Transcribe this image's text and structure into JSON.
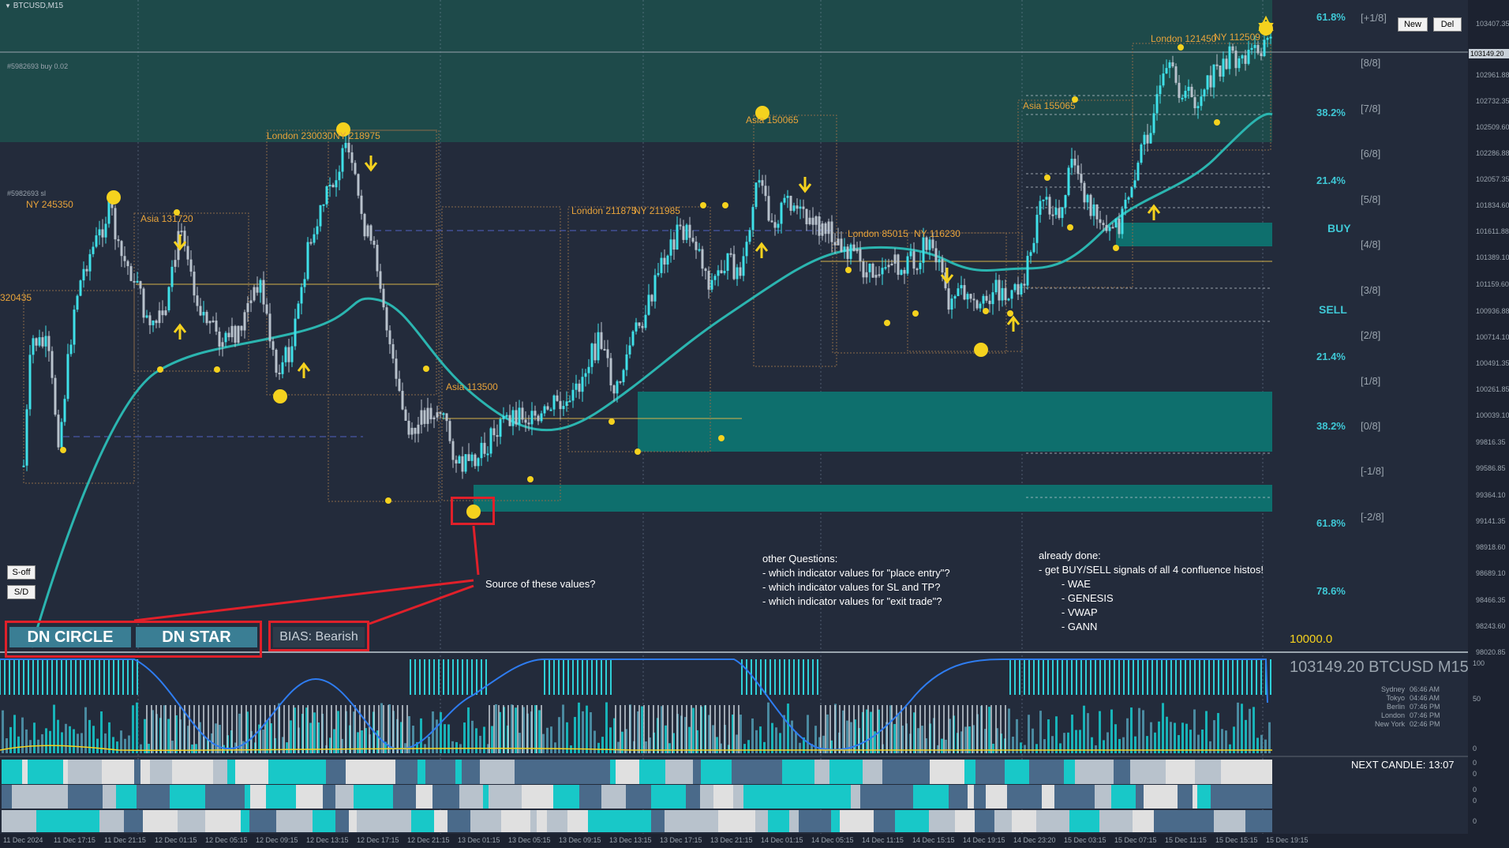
{
  "window": {
    "title": "BTCUSD,M15",
    "collapse_icon": "triangle-down-icon"
  },
  "chart": {
    "symbol_line": "103149.20 BTCUSD M15",
    "order_label_top": "#5982693 buy 0.02",
    "order_label_sl": "#5982693 sl",
    "current_price_box": "103149.20",
    "balance_value": "10000.0",
    "next_candle": "NEXT CANDLE: 13:07",
    "price_ticks": [
      "103407.35",
      "103149.20",
      "102961.88",
      "102732.35",
      "102509.60",
      "102286.88",
      "102057.35",
      "101834.60",
      "101611.88",
      "101389.10",
      "101159.60",
      "100936.88",
      "100714.10",
      "100491.35",
      "100261.85",
      "100039.10",
      "99816.35",
      "99586.85",
      "99364.10",
      "99141.35",
      "98918.60",
      "98689.10",
      "98466.35",
      "98243.60",
      "98020.85"
    ],
    "time_ticks": [
      "11 Dec 2024",
      "11 Dec 17:15",
      "11 Dec 21:15",
      "12 Dec 01:15",
      "12 Dec 05:15",
      "12 Dec 09:15",
      "12 Dec 13:15",
      "12 Dec 17:15",
      "12 Dec 21:15",
      "13 Dec 01:15",
      "13 Dec 05:15",
      "13 Dec 09:15",
      "13 Dec 13:15",
      "13 Dec 17:15",
      "13 Dec 21:15",
      "14 Dec 01:15",
      "14 Dec 05:15",
      "14 Dec 11:15",
      "14 Dec 15:15",
      "14 Dec 19:15",
      "14 Dec 23:20",
      "15 Dec 03:15",
      "15 Dec 07:15",
      "15 Dec 11:15",
      "15 Dec 15:15",
      "15 Dec 19:15"
    ],
    "sub_ticks": [
      "100",
      "50",
      "0",
      "0",
      "0",
      "0",
      "0",
      "0"
    ],
    "fib_labels": [
      {
        "text": "61.8%",
        "color": "#3fc8d6"
      },
      {
        "text": "38.2%",
        "color": "#3fc8d6"
      },
      {
        "text": "21.4%",
        "color": "#3fc8d6"
      },
      {
        "text": "21.4%",
        "color": "#3fc8d6"
      },
      {
        "text": "38.2%",
        "color": "#3fc8d6"
      },
      {
        "text": "61.8%",
        "color": "#3fc8d6"
      },
      {
        "text": "78.6%",
        "color": "#3fc8d6"
      }
    ],
    "gann_labels": [
      "[+1/8]",
      "[8/8]",
      "[7/8]",
      "[6/8]",
      "[5/8]",
      "[4/8]",
      "[3/8]",
      "[2/8]",
      "[1/8]",
      "[0/8]",
      "[-1/8]",
      "[-2/8]"
    ],
    "buy_label": "BUY",
    "sell_label": "SELL",
    "session_labels": [
      "NY 245350",
      "Asia 131720",
      "London 230030",
      "NY 218975",
      "320435",
      "Asia 113500",
      "London 211875",
      "NY 211985",
      "Asia 150065",
      "London 85015",
      "NY 116230",
      "Asia 155065",
      "London 121450",
      "NY 112509"
    ],
    "clocks": [
      {
        "city": "Sydney",
        "time": "06:46 AM"
      },
      {
        "city": "Tokyo",
        "time": "04:46 AM"
      },
      {
        "city": "Berlin",
        "time": "07:46 PM"
      },
      {
        "city": "London",
        "time": "07:46 PM"
      },
      {
        "city": "New York",
        "time": "02:46 PM"
      }
    ]
  },
  "buttons": {
    "new": "New",
    "del": "Del",
    "s_off": "S-off",
    "s_d": "S/D"
  },
  "panels": {
    "dn_circle": "DN CIRCLE",
    "dn_star": "DN STAR",
    "bias": "BIAS: Bearish"
  },
  "annotations": {
    "source_question": "Source of these values?",
    "other_questions": "other Questions:\n- which indicator values for \"place entry\"?\n- which indicator values for SL and TP?\n- which indicator values for \"exit trade\"?",
    "already_done": "already done:\n- get BUY/SELL signals of all 4 confluence histos!\n        - WAE\n        - GENESIS\n        - VWAP\n        - GANN"
  },
  "colors": {
    "background": "#232b3b",
    "bull": "#3fe0e8",
    "bear": "#b8c2cc",
    "teal_zone": "#0e6f6d",
    "ma_line": "#2bb5b0",
    "session": "#e8a33a",
    "marker": "#f5d21e",
    "annot": "#e0202a"
  }
}
